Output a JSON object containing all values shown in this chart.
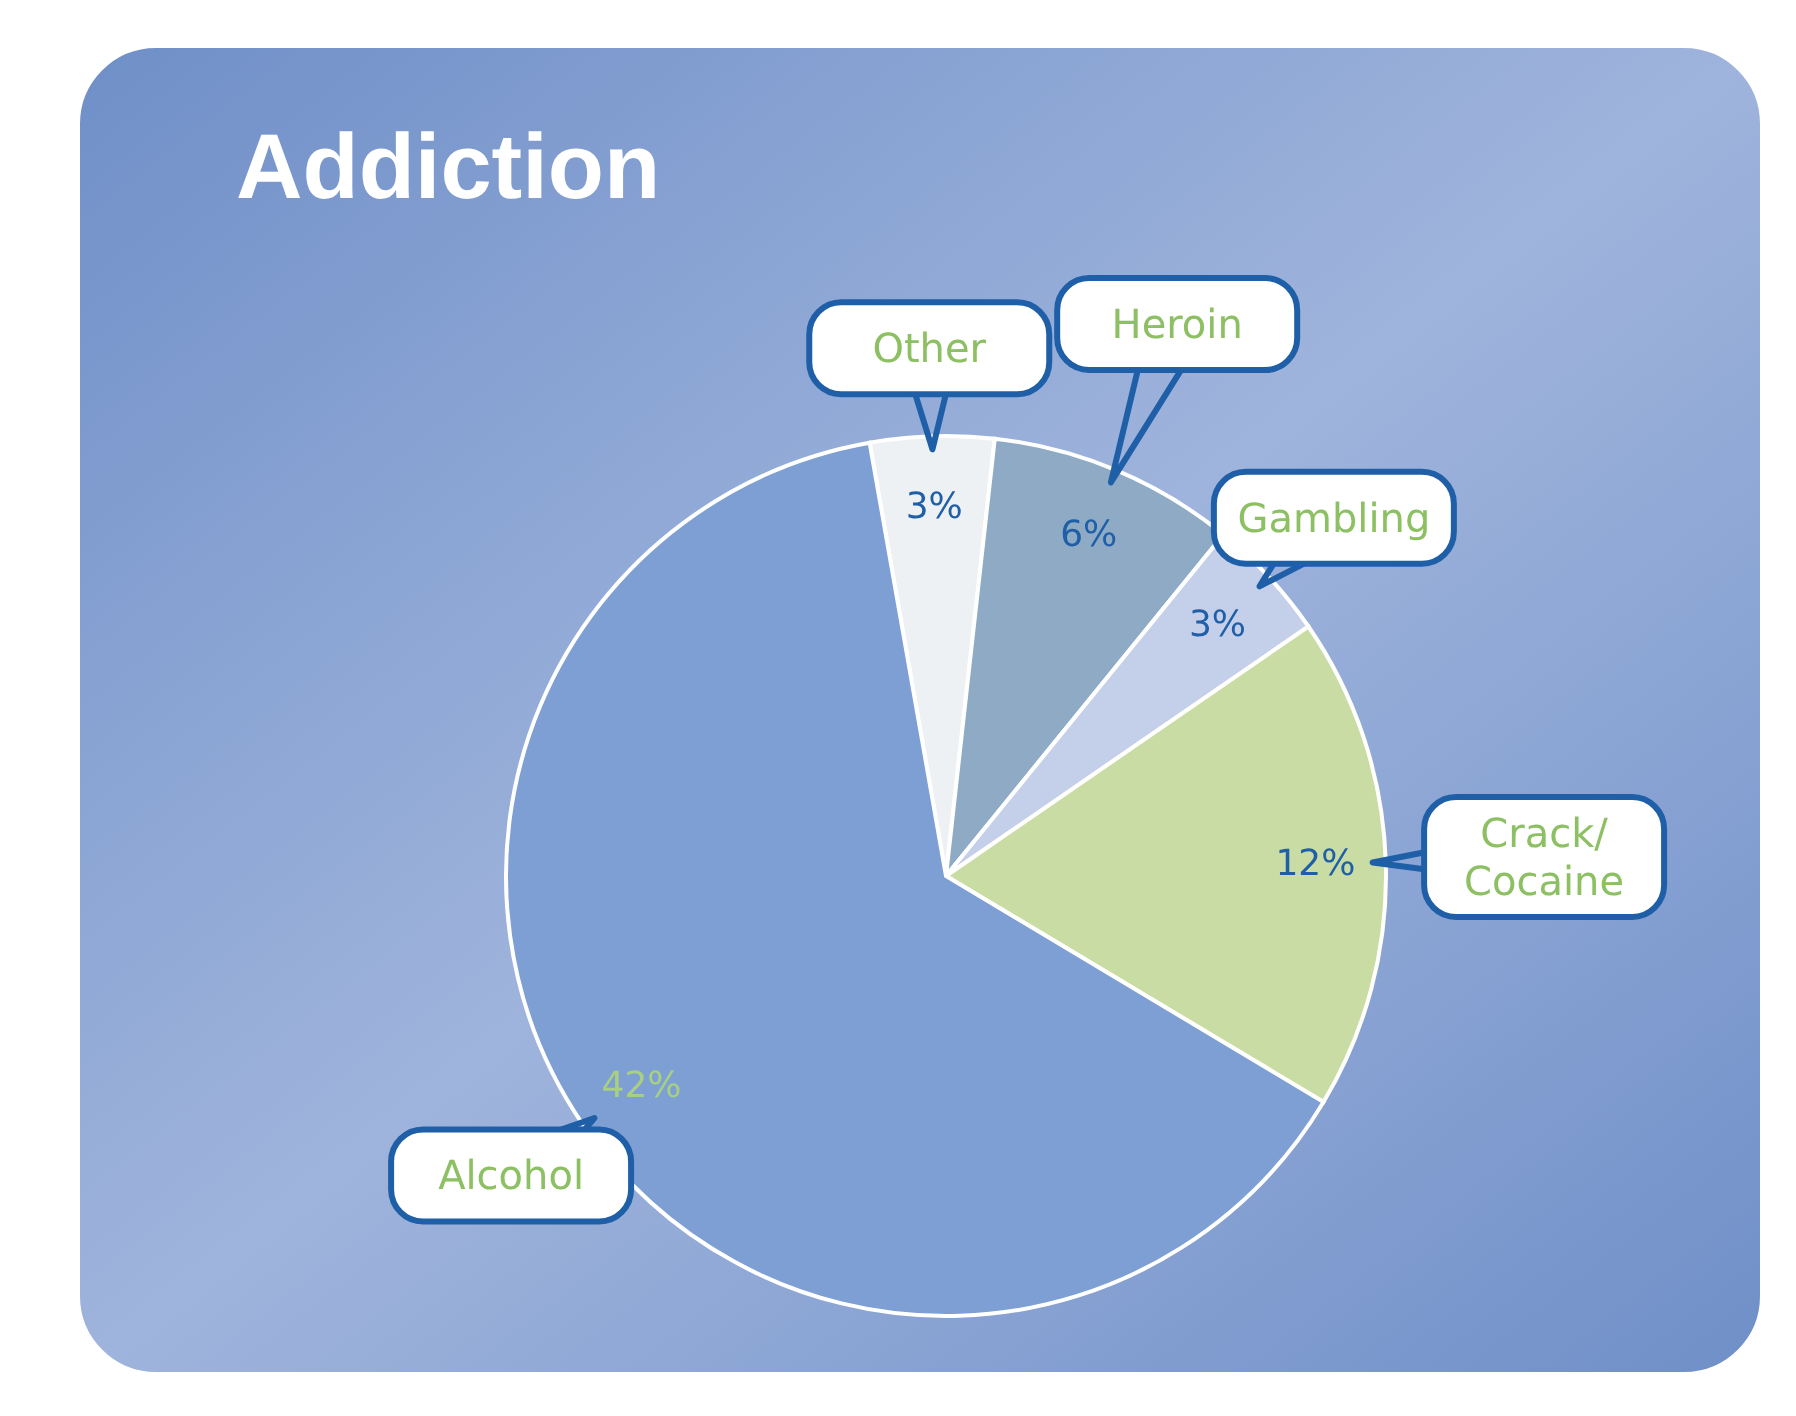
{
  "chart_data": {
    "type": "pie",
    "title": "Addiction",
    "categories": [
      "Other",
      "Heroin",
      "Gambling",
      "Crack/\nCocaine",
      "Alcohol"
    ],
    "values": [
      3,
      6,
      3,
      12,
      42
    ],
    "value_labels": [
      "3%",
      "6%",
      "3%",
      "12%",
      "42%"
    ],
    "colors": [
      "#eef1f4",
      "#8eaac4",
      "#c4d0ea",
      "#c9dca3",
      "#7d9fd4"
    ],
    "legend": false
  }
}
